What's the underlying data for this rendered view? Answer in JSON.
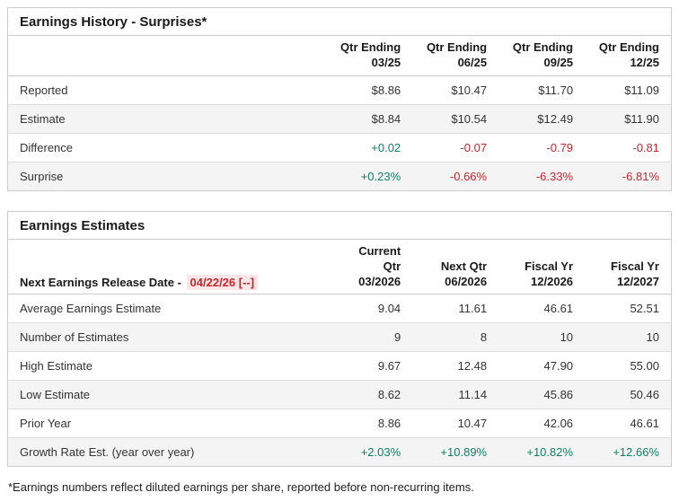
{
  "earnings_history": {
    "title": "Earnings History - Surprises*",
    "columns": [
      {
        "line1": "Qtr Ending",
        "line2": "03/25"
      },
      {
        "line1": "Qtr Ending",
        "line2": "06/25"
      },
      {
        "line1": "Qtr Ending",
        "line2": "09/25"
      },
      {
        "line1": "Qtr Ending",
        "line2": "12/25"
      }
    ],
    "rows": [
      {
        "label": "Reported",
        "values": [
          "$8.86",
          "$10.47",
          "$11.70",
          "$11.09"
        ]
      },
      {
        "label": "Estimate",
        "values": [
          "$8.84",
          "$10.54",
          "$12.49",
          "$11.90"
        ]
      },
      {
        "label": "Difference",
        "values": [
          "+0.02",
          "-0.07",
          "-0.79",
          "-0.81"
        ]
      },
      {
        "label": "Surprise",
        "values": [
          "+0.23%",
          "-0.66%",
          "-6.33%",
          "-6.81%"
        ]
      }
    ]
  },
  "earnings_estimates": {
    "title": "Earnings Estimates",
    "release_label": "Next Earnings Release Date -",
    "release_date": "04/22/26 [--]",
    "columns": [
      {
        "line1": "Current Qtr",
        "line2": "03/2026"
      },
      {
        "line1": "Next Qtr",
        "line2": "06/2026"
      },
      {
        "line1": "Fiscal Yr",
        "line2": "12/2026"
      },
      {
        "line1": "Fiscal Yr",
        "line2": "12/2027"
      }
    ],
    "rows": [
      {
        "label": "Average Earnings Estimate",
        "values": [
          "9.04",
          "11.61",
          "46.61",
          "52.51"
        ]
      },
      {
        "label": "Number of Estimates",
        "values": [
          "9",
          "8",
          "10",
          "10"
        ]
      },
      {
        "label": "High Estimate",
        "values": [
          "9.67",
          "12.48",
          "47.90",
          "55.00"
        ]
      },
      {
        "label": "Low Estimate",
        "values": [
          "8.62",
          "11.14",
          "45.86",
          "50.46"
        ]
      },
      {
        "label": "Prior Year",
        "values": [
          "8.86",
          "10.47",
          "42.06",
          "46.61"
        ]
      },
      {
        "label": "Growth Rate Est. (year over year)",
        "values": [
          "+2.03%",
          "+10.89%",
          "+10.82%",
          "+12.66%"
        ]
      }
    ]
  },
  "footnote": "*Earnings numbers reflect diluted earnings per share, reported before non-recurring items.",
  "colors": {
    "positive_value": "#0e8161",
    "negative_value": "#c9262e",
    "release_date_text": "#c9262e",
    "release_date_bg": "#fbe7e7",
    "row_stripe": "#f4f4f4",
    "table_border": "#cccccc"
  }
}
